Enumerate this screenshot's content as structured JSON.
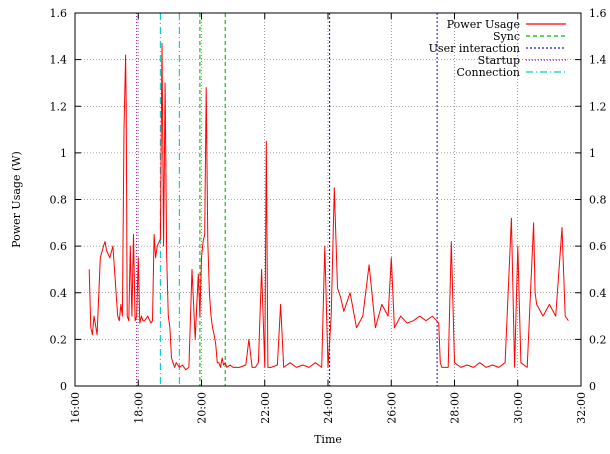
{
  "chart_data": {
    "type": "line",
    "xlabel": "Time",
    "ylabel": "Power Usage (W)",
    "xlim": [
      16,
      32
    ],
    "ylim": [
      0,
      1.6
    ],
    "x_ticks": [
      "16:00",
      "18:00",
      "20:00",
      "22:00",
      "24:00",
      "26:00",
      "28:00",
      "30:00",
      "32:00"
    ],
    "y_ticks": [
      "0",
      "0.2",
      "0.4",
      "0.6",
      "0.8",
      "1",
      "1.2",
      "1.4",
      "1.6"
    ],
    "y_ticks_right": [
      "0",
      "0.2",
      "0.4",
      "0.6",
      "0.8",
      "1",
      "1.2",
      "1.4",
      "1.6"
    ],
    "grid": true,
    "legend_position": "top-right",
    "legend": [
      "Power Usage",
      "Sync",
      "User interaction",
      "Startup",
      "Connection"
    ],
    "colors": {
      "power": "#ff0000",
      "sync": "#00bb00",
      "user_interaction": "#2222cc",
      "startup": "#aa00aa",
      "connection": "#00cccc",
      "grid": "#555555"
    },
    "series": [
      {
        "name": "Power Usage",
        "x": [
          16.45,
          16.5,
          16.55,
          16.6,
          16.7,
          16.8,
          16.9,
          16.95,
          17.0,
          17.1,
          17.2,
          17.3,
          17.35,
          17.4,
          17.45,
          17.5,
          17.55,
          17.6,
          17.62,
          17.65,
          17.7,
          17.75,
          17.8,
          17.85,
          17.9,
          17.95,
          18.0,
          18.05,
          18.1,
          18.15,
          18.2,
          18.3,
          18.4,
          18.45,
          18.5,
          18.55,
          18.6,
          18.7,
          18.75,
          18.8,
          18.85,
          18.9,
          18.95,
          19.0,
          19.05,
          19.1,
          19.15,
          19.2,
          19.3,
          19.4,
          19.5,
          19.6,
          19.7,
          19.8,
          19.85,
          19.9,
          19.95,
          20.0,
          20.05,
          20.1,
          20.15,
          20.2,
          20.25,
          20.3,
          20.35,
          20.4,
          20.45,
          20.5,
          20.55,
          20.6,
          20.65,
          20.7,
          20.75,
          20.8,
          20.9,
          21.0,
          21.2,
          21.4,
          21.5,
          21.6,
          21.7,
          21.8,
          21.9,
          22.0,
          22.05,
          22.1,
          22.2,
          22.4,
          22.5,
          22.6,
          22.8,
          23.0,
          23.2,
          23.4,
          23.6,
          23.8,
          23.9,
          24.0,
          24.1,
          24.2,
          24.3,
          24.4,
          24.5,
          24.7,
          24.9,
          25.1,
          25.3,
          25.5,
          25.7,
          25.9,
          26.0,
          26.1,
          26.3,
          26.5,
          26.7,
          26.9,
          27.1,
          27.3,
          27.5,
          27.55,
          27.6,
          27.8,
          27.9,
          28.0,
          28.2,
          28.4,
          28.6,
          28.8,
          29.0,
          29.2,
          29.4,
          29.6,
          29.8,
          29.9,
          30.0,
          30.1,
          30.3,
          30.5,
          30.55,
          30.6,
          30.8,
          31.0,
          31.2,
          31.4,
          31.5,
          31.6
        ],
        "y": [
          0.5,
          0.25,
          0.22,
          0.3,
          0.22,
          0.55,
          0.6,
          0.62,
          0.58,
          0.55,
          0.6,
          0.4,
          0.3,
          0.28,
          0.35,
          0.3,
          1.1,
          1.42,
          1.2,
          0.3,
          0.28,
          0.6,
          0.3,
          0.65,
          0.28,
          0.3,
          0.55,
          0.27,
          0.3,
          0.28,
          0.28,
          0.3,
          0.27,
          0.28,
          0.65,
          0.55,
          0.6,
          0.63,
          1.47,
          0.6,
          1.3,
          0.55,
          0.3,
          0.25,
          0.12,
          0.1,
          0.08,
          0.1,
          0.08,
          0.09,
          0.07,
          0.08,
          0.5,
          0.2,
          0.35,
          0.48,
          0.3,
          0.55,
          0.62,
          0.65,
          1.28,
          0.62,
          0.4,
          0.3,
          0.25,
          0.22,
          0.18,
          0.1,
          0.1,
          0.08,
          0.12,
          0.09,
          0.1,
          0.08,
          0.09,
          0.08,
          0.08,
          0.09,
          0.2,
          0.08,
          0.08,
          0.1,
          0.5,
          0.08,
          1.05,
          0.08,
          0.08,
          0.09,
          0.35,
          0.08,
          0.1,
          0.08,
          0.09,
          0.08,
          0.1,
          0.08,
          0.6,
          0.08,
          0.3,
          0.85,
          0.42,
          0.38,
          0.32,
          0.4,
          0.25,
          0.3,
          0.52,
          0.25,
          0.35,
          0.3,
          0.55,
          0.25,
          0.3,
          0.27,
          0.28,
          0.3,
          0.28,
          0.3,
          0.27,
          0.1,
          0.08,
          0.08,
          0.62,
          0.1,
          0.08,
          0.09,
          0.08,
          0.1,
          0.08,
          0.09,
          0.08,
          0.1,
          0.72,
          0.08,
          0.6,
          0.1,
          0.08,
          0.7,
          0.4,
          0.35,
          0.3,
          0.35,
          0.3,
          0.68,
          0.3,
          0.28
        ]
      }
    ],
    "event_lines": [
      {
        "name": "Startup",
        "x": [
          17.95
        ]
      },
      {
        "name": "Connection",
        "x": [
          18.7,
          19.3
        ]
      },
      {
        "name": "Sync",
        "x": [
          19.95,
          20.75
        ]
      },
      {
        "name": "User interaction",
        "x": [
          24.05,
          27.45
        ]
      }
    ]
  }
}
